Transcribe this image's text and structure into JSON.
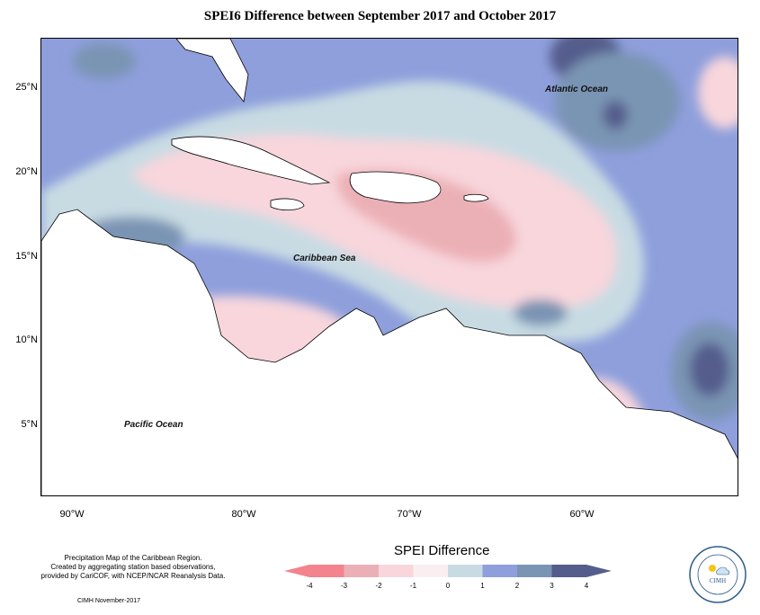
{
  "title": "SPEI6 Difference between September 2017 and October 2017",
  "map": {
    "lat_ticks": [
      "25°N",
      "20°N",
      "15°N",
      "10°N",
      "5°N"
    ],
    "lon_ticks": [
      "90°W",
      "80°W",
      "70°W",
      "60°W"
    ],
    "labels": {
      "atlantic": "Atlantic Ocean",
      "caribbean": "Caribbean Sea",
      "pacific": "Pacific Ocean"
    }
  },
  "footnote": {
    "line1": "Precipitation Map of the Caribbean Region.",
    "line2": "Created by aggregating station based observations,",
    "line3": "provided by CariCOF, with NCEP/NCAR Reanalysis Data."
  },
  "credit": "CIMH November-2017",
  "legend": {
    "title": "SPEI Difference",
    "ticks": [
      "-4",
      "-3",
      "-2",
      "-1",
      "0",
      "1",
      "2",
      "3",
      "4"
    ],
    "colors": [
      "#f3838c",
      "#ebb0b6",
      "#f8d6dc",
      "#fbeef0",
      "#c8dbe3",
      "#8e9fdc",
      "#7a94b4",
      "#545d8c"
    ]
  },
  "logo": {
    "text": "CIMH"
  }
}
